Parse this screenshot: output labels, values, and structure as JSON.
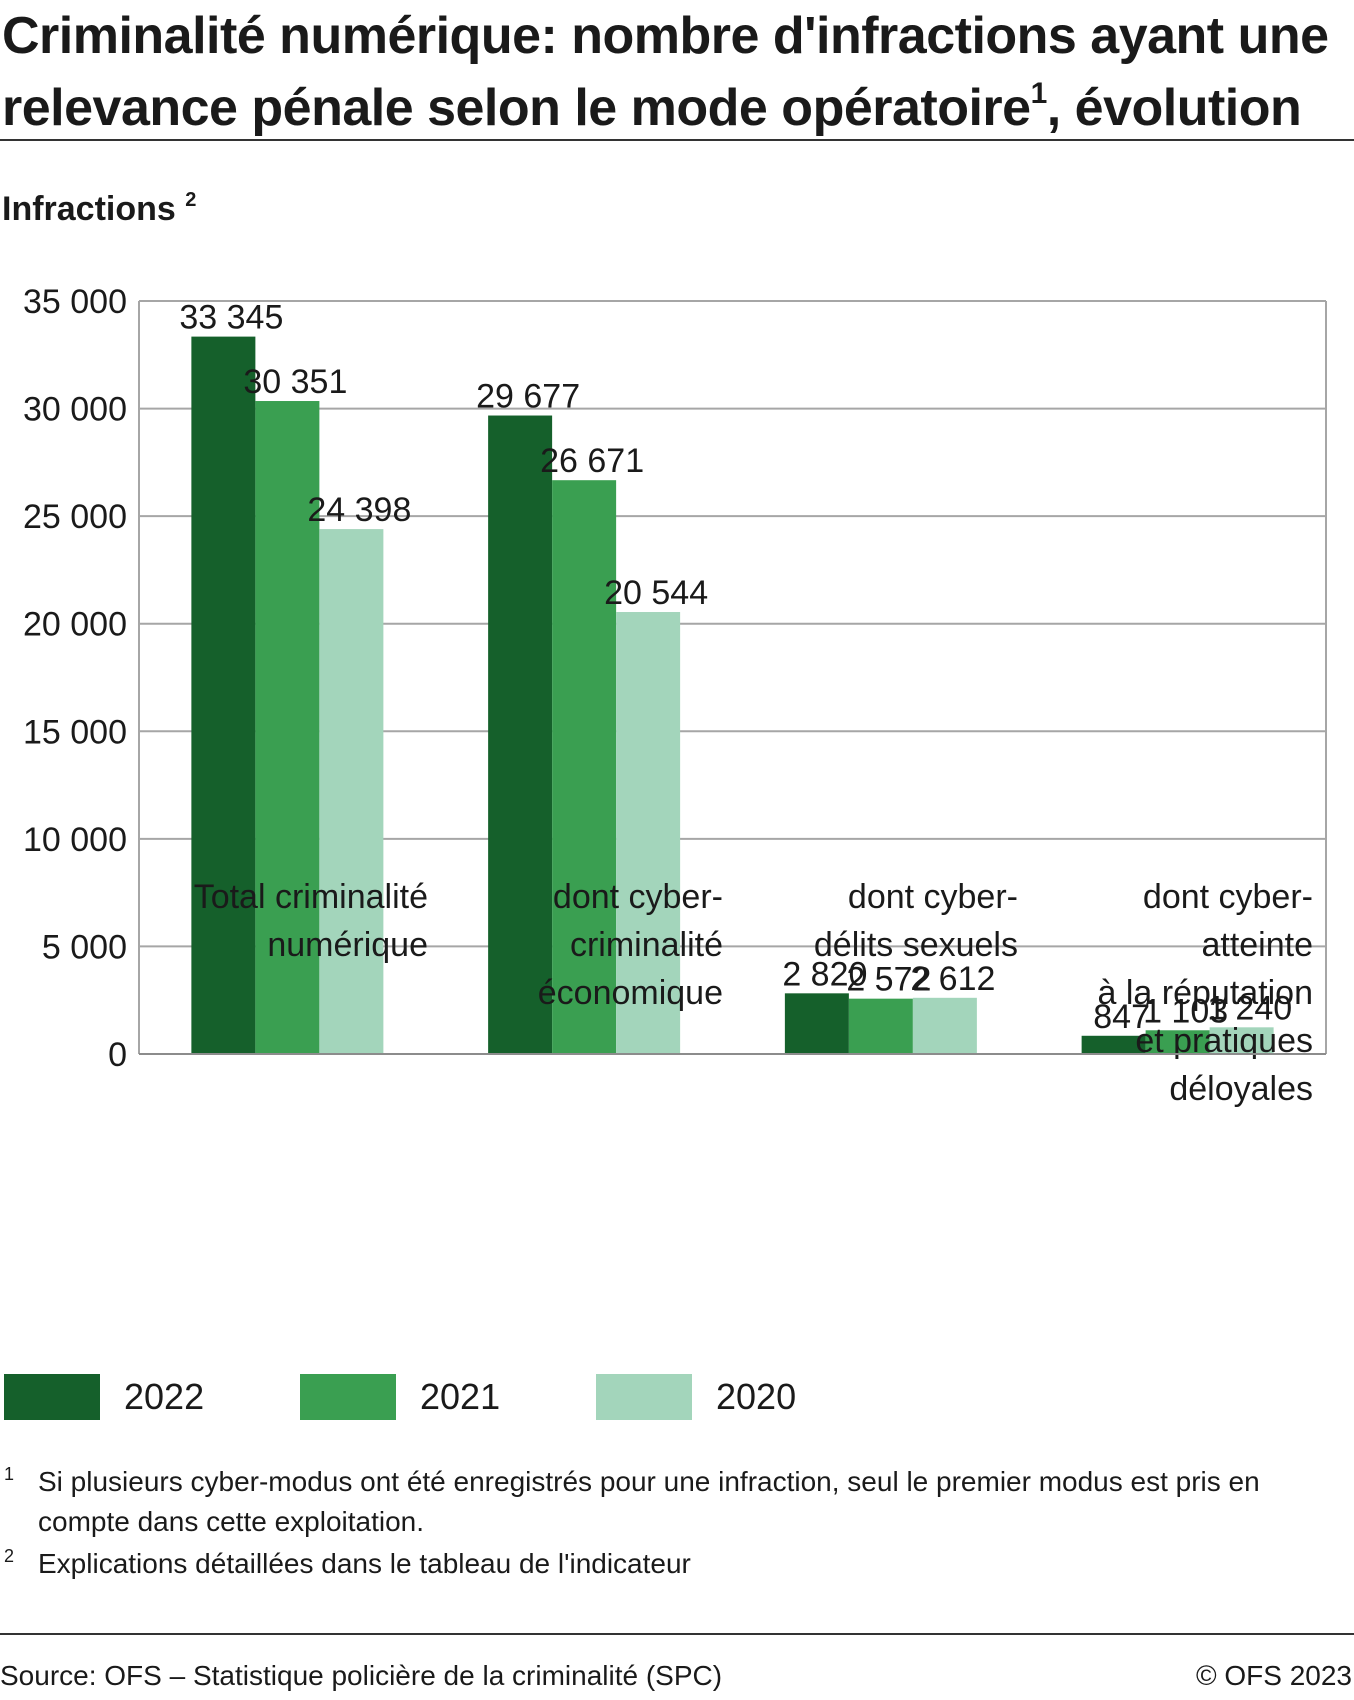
{
  "title": {
    "text": "Criminalité numérique: nombre d'infractions ayant une relevance pénale selon le mode opératoire",
    "sup": "1",
    "suffix": ", évolution"
  },
  "unit_label": {
    "text": "Infractions",
    "sup": "2"
  },
  "colors": {
    "y2022": "#15602b",
    "y2021": "#3a9f51",
    "y2020": "#a3d5bb",
    "grid": "#a6a6a6",
    "text": "#1a1a1a"
  },
  "chart_data": {
    "type": "bar",
    "categories": [
      [
        "Total criminalité",
        "numérique"
      ],
      [
        "dont cyber-",
        "criminalité",
        "économique"
      ],
      [
        "dont cyber-",
        "délits sexuels"
      ],
      [
        "dont cyber-",
        "atteinte",
        "à la réputation",
        "et pratiques",
        "déloyales"
      ]
    ],
    "series": [
      {
        "name": "2022",
        "color": "#15602b",
        "values": [
          33345,
          29677,
          2820,
          847
        ],
        "labels": [
          "33 345",
          "29 677",
          "2 820",
          "847"
        ]
      },
      {
        "name": "2021",
        "color": "#3a9f51",
        "values": [
          30351,
          26671,
          2572,
          1103
        ],
        "labels": [
          "30 351",
          "26 671",
          "2 572",
          "1 103"
        ]
      },
      {
        "name": "2020",
        "color": "#a3d5bb",
        "values": [
          24398,
          20544,
          2612,
          1240
        ],
        "labels": [
          "24 398",
          "20 544",
          "2 612",
          "1 240"
        ]
      }
    ],
    "ylim": [
      0,
      35000
    ],
    "yticks": [
      0,
      5000,
      10000,
      15000,
      20000,
      25000,
      30000,
      35000
    ],
    "ytick_labels": [
      "0",
      "5 000",
      "10 000",
      "15 000",
      "20 000",
      "25 000",
      "30 000",
      "35 000"
    ],
    "grid": true,
    "legend_position": "bottom"
  },
  "legend": {
    "items": [
      "2022",
      "2021",
      "2020"
    ]
  },
  "footnotes": [
    {
      "num": "1",
      "text": "Si plusieurs cyber-modus ont été enregistrés pour une infraction, seul le premier modus est pris en compte dans cette exploitation."
    },
    {
      "num": "2",
      "text": "Explications détaillées dans le tableau de l'indicateur"
    }
  ],
  "source": "Source: OFS – Statistique policière de la criminalité (SPC)",
  "copyright": "© OFS 2023"
}
